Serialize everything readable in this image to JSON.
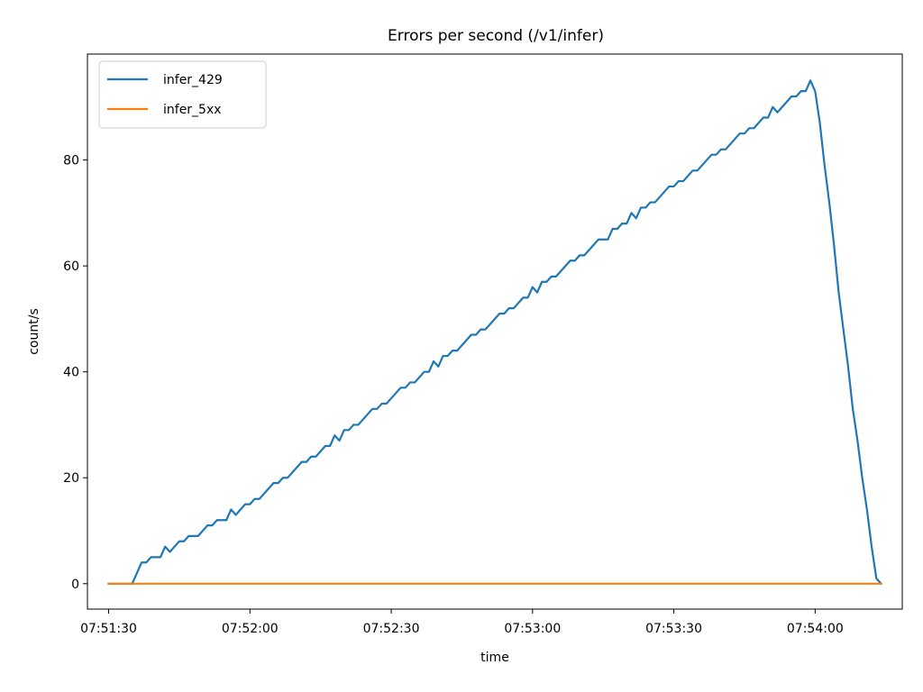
{
  "chart_data": {
    "type": "line",
    "title": "Errors per second (/v1/infer)",
    "xlabel": "time",
    "ylabel": "count/s",
    "x_ticks": [
      "07:51:30",
      "07:52:00",
      "07:52:30",
      "07:53:00",
      "07:53:30",
      "07:54:00"
    ],
    "y_ticks": [
      0,
      20,
      40,
      60,
      80
    ],
    "xlim": [
      "07:51:25.5",
      "07:54:18.5"
    ],
    "ylim": [
      -4.8,
      100
    ],
    "grid": false,
    "legend_position": "upper left",
    "series": [
      {
        "name": "infer_429",
        "color": "#1f77b4",
        "points": [
          [
            "07:51:30",
            0
          ],
          [
            "07:51:31",
            0
          ],
          [
            "07:51:32",
            0
          ],
          [
            "07:51:33",
            0
          ],
          [
            "07:51:34",
            0
          ],
          [
            "07:51:35",
            0
          ],
          [
            "07:51:36",
            2
          ],
          [
            "07:51:37",
            4
          ],
          [
            "07:51:38",
            4
          ],
          [
            "07:51:39",
            5
          ],
          [
            "07:51:40",
            5
          ],
          [
            "07:51:41",
            5
          ],
          [
            "07:51:42",
            7
          ],
          [
            "07:51:43",
            6
          ],
          [
            "07:51:44",
            7
          ],
          [
            "07:51:45",
            8
          ],
          [
            "07:51:46",
            8
          ],
          [
            "07:51:47",
            9
          ],
          [
            "07:51:48",
            9
          ],
          [
            "07:51:49",
            9
          ],
          [
            "07:51:50",
            10
          ],
          [
            "07:51:51",
            11
          ],
          [
            "07:51:52",
            11
          ],
          [
            "07:51:53",
            12
          ],
          [
            "07:51:54",
            12
          ],
          [
            "07:51:55",
            12
          ],
          [
            "07:51:56",
            14
          ],
          [
            "07:51:57",
            13
          ],
          [
            "07:51:58",
            14
          ],
          [
            "07:51:59",
            15
          ],
          [
            "07:52:00",
            15
          ],
          [
            "07:52:01",
            16
          ],
          [
            "07:52:02",
            16
          ],
          [
            "07:52:03",
            17
          ],
          [
            "07:52:04",
            18
          ],
          [
            "07:52:05",
            19
          ],
          [
            "07:52:06",
            19
          ],
          [
            "07:52:07",
            20
          ],
          [
            "07:52:08",
            20
          ],
          [
            "07:52:09",
            21
          ],
          [
            "07:52:10",
            22
          ],
          [
            "07:52:11",
            23
          ],
          [
            "07:52:12",
            23
          ],
          [
            "07:52:13",
            24
          ],
          [
            "07:52:14",
            24
          ],
          [
            "07:52:15",
            25
          ],
          [
            "07:52:16",
            26
          ],
          [
            "07:52:17",
            26
          ],
          [
            "07:52:18",
            28
          ],
          [
            "07:52:19",
            27
          ],
          [
            "07:52:20",
            29
          ],
          [
            "07:52:21",
            29
          ],
          [
            "07:52:22",
            30
          ],
          [
            "07:52:23",
            30
          ],
          [
            "07:52:24",
            31
          ],
          [
            "07:52:25",
            32
          ],
          [
            "07:52:26",
            33
          ],
          [
            "07:52:27",
            33
          ],
          [
            "07:52:28",
            34
          ],
          [
            "07:52:29",
            34
          ],
          [
            "07:52:30",
            35
          ],
          [
            "07:52:31",
            36
          ],
          [
            "07:52:32",
            37
          ],
          [
            "07:52:33",
            37
          ],
          [
            "07:52:34",
            38
          ],
          [
            "07:52:35",
            38
          ],
          [
            "07:52:36",
            39
          ],
          [
            "07:52:37",
            40
          ],
          [
            "07:52:38",
            40
          ],
          [
            "07:52:39",
            42
          ],
          [
            "07:52:40",
            41
          ],
          [
            "07:52:41",
            43
          ],
          [
            "07:52:42",
            43
          ],
          [
            "07:52:43",
            44
          ],
          [
            "07:52:44",
            44
          ],
          [
            "07:52:45",
            45
          ],
          [
            "07:52:46",
            46
          ],
          [
            "07:52:47",
            47
          ],
          [
            "07:52:48",
            47
          ],
          [
            "07:52:49",
            48
          ],
          [
            "07:52:50",
            48
          ],
          [
            "07:52:51",
            49
          ],
          [
            "07:52:52",
            50
          ],
          [
            "07:52:53",
            51
          ],
          [
            "07:52:54",
            51
          ],
          [
            "07:52:55",
            52
          ],
          [
            "07:52:56",
            52
          ],
          [
            "07:52:57",
            53
          ],
          [
            "07:52:58",
            54
          ],
          [
            "07:52:59",
            54
          ],
          [
            "07:53:00",
            56
          ],
          [
            "07:53:01",
            55
          ],
          [
            "07:53:02",
            57
          ],
          [
            "07:53:03",
            57
          ],
          [
            "07:53:04",
            58
          ],
          [
            "07:53:05",
            58
          ],
          [
            "07:53:06",
            59
          ],
          [
            "07:53:07",
            60
          ],
          [
            "07:53:08",
            61
          ],
          [
            "07:53:09",
            61
          ],
          [
            "07:53:10",
            62
          ],
          [
            "07:53:11",
            62
          ],
          [
            "07:53:12",
            63
          ],
          [
            "07:53:13",
            64
          ],
          [
            "07:53:14",
            65
          ],
          [
            "07:53:15",
            65
          ],
          [
            "07:53:16",
            65
          ],
          [
            "07:53:17",
            67
          ],
          [
            "07:53:18",
            67
          ],
          [
            "07:53:19",
            68
          ],
          [
            "07:53:20",
            68
          ],
          [
            "07:53:21",
            70
          ],
          [
            "07:53:22",
            69
          ],
          [
            "07:53:23",
            71
          ],
          [
            "07:53:24",
            71
          ],
          [
            "07:53:25",
            72
          ],
          [
            "07:53:26",
            72
          ],
          [
            "07:53:27",
            73
          ],
          [
            "07:53:28",
            74
          ],
          [
            "07:53:29",
            75
          ],
          [
            "07:53:30",
            75
          ],
          [
            "07:53:31",
            76
          ],
          [
            "07:53:32",
            76
          ],
          [
            "07:53:33",
            77
          ],
          [
            "07:53:34",
            78
          ],
          [
            "07:53:35",
            78
          ],
          [
            "07:53:36",
            79
          ],
          [
            "07:53:37",
            80
          ],
          [
            "07:53:38",
            81
          ],
          [
            "07:53:39",
            81
          ],
          [
            "07:53:40",
            82
          ],
          [
            "07:53:41",
            82
          ],
          [
            "07:53:42",
            83
          ],
          [
            "07:53:43",
            84
          ],
          [
            "07:53:44",
            85
          ],
          [
            "07:53:45",
            85
          ],
          [
            "07:53:46",
            86
          ],
          [
            "07:53:47",
            86
          ],
          [
            "07:53:48",
            87
          ],
          [
            "07:53:49",
            88
          ],
          [
            "07:53:50",
            88
          ],
          [
            "07:53:51",
            90
          ],
          [
            "07:53:52",
            89
          ],
          [
            "07:53:53",
            90
          ],
          [
            "07:53:54",
            91
          ],
          [
            "07:53:55",
            92
          ],
          [
            "07:53:56",
            92
          ],
          [
            "07:53:57",
            93
          ],
          [
            "07:53:58",
            93
          ],
          [
            "07:53:59",
            95
          ],
          [
            "07:54:00",
            93
          ],
          [
            "07:54:01",
            87
          ],
          [
            "07:54:02",
            79
          ],
          [
            "07:54:03",
            72
          ],
          [
            "07:54:04",
            64
          ],
          [
            "07:54:05",
            55
          ],
          [
            "07:54:06",
            48
          ],
          [
            "07:54:07",
            41
          ],
          [
            "07:54:08",
            33
          ],
          [
            "07:54:09",
            27
          ],
          [
            "07:54:10",
            20
          ],
          [
            "07:54:11",
            14
          ],
          [
            "07:54:12",
            7
          ],
          [
            "07:54:13",
            1
          ],
          [
            "07:54:14",
            0
          ]
        ]
      },
      {
        "name": "infer_5xx",
        "color": "#ff7f0e",
        "points": [
          [
            "07:51:30",
            0
          ],
          [
            "07:54:14",
            0
          ]
        ]
      }
    ]
  }
}
